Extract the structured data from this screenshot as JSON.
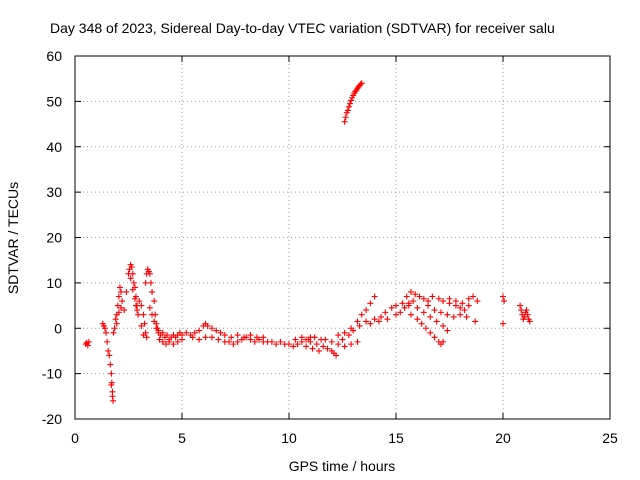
{
  "chart_data": {
    "type": "scatter",
    "title": "Day 348 of 2023, Sidereal Day-to-day VTEC variation (SDTVAR) for receiver salu",
    "xlabel": "GPS time / hours",
    "ylabel": "SDTVAR / TECUs",
    "xlim": [
      0,
      25
    ],
    "ylim": [
      -20,
      60
    ],
    "xticks": [
      "0",
      "5",
      "10",
      "15",
      "20",
      "25"
    ],
    "yticks": [
      "-20",
      "-10",
      "0",
      "10",
      "20",
      "30",
      "40",
      "50",
      "60"
    ],
    "grid": true,
    "marker": "+",
    "color": "#ff0000",
    "series": [
      {
        "name": "SDTVAR",
        "points": [
          [
            0.5,
            -3.5
          ],
          [
            0.55,
            -3.2
          ],
          [
            0.6,
            -3.8
          ],
          [
            0.65,
            -3.0
          ],
          [
            1.3,
            1.0
          ],
          [
            1.35,
            0.5
          ],
          [
            1.4,
            0.0
          ],
          [
            1.45,
            -1.0
          ],
          [
            1.5,
            -3.0
          ],
          [
            1.55,
            -5.0
          ],
          [
            1.6,
            -6.0
          ],
          [
            1.65,
            -8.0
          ],
          [
            1.7,
            -10.0
          ],
          [
            1.72,
            -12.0
          ],
          [
            1.75,
            -14.0
          ],
          [
            1.78,
            -16.0
          ],
          [
            1.7,
            -12.5
          ],
          [
            1.75,
            -15.0
          ],
          [
            1.8,
            -1.0
          ],
          [
            1.85,
            0.0
          ],
          [
            1.9,
            2.0
          ],
          [
            1.95,
            3.0
          ],
          [
            2.0,
            5.0
          ],
          [
            2.05,
            7.0
          ],
          [
            2.1,
            9.0
          ],
          [
            2.15,
            8.0
          ],
          [
            2.2,
            6.0
          ],
          [
            2.05,
            3.5
          ],
          [
            2.15,
            4.5
          ],
          [
            1.95,
            1.0
          ],
          [
            2.3,
            4.0
          ],
          [
            2.4,
            8.0
          ],
          [
            2.5,
            12.0
          ],
          [
            2.55,
            13.0
          ],
          [
            2.6,
            14.0
          ],
          [
            2.65,
            13.5
          ],
          [
            2.7,
            12.0
          ],
          [
            2.75,
            10.0
          ],
          [
            2.8,
            9.0
          ],
          [
            2.85,
            7.0
          ],
          [
            2.9,
            5.0
          ],
          [
            2.95,
            3.0
          ],
          [
            2.6,
            11.0
          ],
          [
            2.7,
            8.5
          ],
          [
            2.8,
            6.5
          ],
          [
            2.85,
            5.0
          ],
          [
            2.9,
            4.0
          ],
          [
            3.0,
            6.0
          ],
          [
            3.1,
            5.0
          ],
          [
            3.2,
            3.0
          ],
          [
            3.25,
            1.0
          ],
          [
            3.3,
            -1.0
          ],
          [
            3.35,
            -2.0
          ],
          [
            3.1,
            0.5
          ],
          [
            3.2,
            -1.5
          ],
          [
            3.3,
            10.0
          ],
          [
            3.35,
            12.0
          ],
          [
            3.4,
            13.0
          ],
          [
            3.45,
            12.5
          ],
          [
            3.5,
            12.0
          ],
          [
            3.55,
            10.0
          ],
          [
            3.6,
            8.0
          ],
          [
            3.7,
            6.0
          ],
          [
            3.75,
            3.0
          ],
          [
            3.8,
            1.0
          ],
          [
            3.85,
            0.0
          ],
          [
            3.5,
            4.5
          ],
          [
            3.6,
            3.0
          ],
          [
            3.7,
            1.5
          ],
          [
            3.8,
            0.0
          ],
          [
            3.9,
            -1.0
          ],
          [
            3.9,
            -0.5
          ],
          [
            4.0,
            -1.5
          ],
          [
            4.1,
            -1.0
          ],
          [
            4.2,
            -2.0
          ],
          [
            4.3,
            -1.5
          ],
          [
            4.4,
            -2.5
          ],
          [
            4.5,
            -2.0
          ],
          [
            4.6,
            -1.5
          ],
          [
            4.7,
            -2.0
          ],
          [
            4.8,
            -1.5
          ],
          [
            4.9,
            -1.0
          ],
          [
            5.0,
            -1.5
          ],
          [
            3.95,
            -2.5
          ],
          [
            4.1,
            -3.0
          ],
          [
            4.25,
            -3.5
          ],
          [
            4.4,
            -3.0
          ],
          [
            4.6,
            -3.5
          ],
          [
            4.8,
            -3.0
          ],
          [
            5.0,
            -2.5
          ],
          [
            5.2,
            -1.0
          ],
          [
            5.4,
            -1.5
          ],
          [
            5.6,
            -1.0
          ],
          [
            5.8,
            -0.5
          ],
          [
            6.0,
            0.5
          ],
          [
            6.1,
            1.0
          ],
          [
            6.2,
            0.5
          ],
          [
            6.4,
            0.0
          ],
          [
            6.6,
            -0.5
          ],
          [
            6.8,
            -1.0
          ],
          [
            7.0,
            -1.5
          ],
          [
            5.5,
            -2.0
          ],
          [
            5.8,
            -2.5
          ],
          [
            6.1,
            -2.0
          ],
          [
            6.4,
            -2.0
          ],
          [
            6.7,
            -2.5
          ],
          [
            7.0,
            -3.0
          ],
          [
            7.2,
            -3.0
          ],
          [
            7.4,
            -3.5
          ],
          [
            7.6,
            -3.0
          ],
          [
            7.8,
            -2.5
          ],
          [
            8.0,
            -2.0
          ],
          [
            8.2,
            -2.5
          ],
          [
            8.4,
            -3.0
          ],
          [
            8.6,
            -2.5
          ],
          [
            8.8,
            -3.0
          ],
          [
            9.0,
            -3.0
          ],
          [
            7.3,
            -2.0
          ],
          [
            7.6,
            -1.5
          ],
          [
            7.9,
            -2.0
          ],
          [
            8.2,
            -1.5
          ],
          [
            8.5,
            -2.0
          ],
          [
            8.8,
            -2.0
          ],
          [
            9.2,
            -3.0
          ],
          [
            9.4,
            -3.5
          ],
          [
            9.6,
            -3.0
          ],
          [
            9.8,
            -3.5
          ],
          [
            10.0,
            -3.5
          ],
          [
            10.2,
            -4.0
          ],
          [
            10.4,
            -3.5
          ],
          [
            10.6,
            -3.0
          ],
          [
            10.8,
            -2.5
          ],
          [
            11.0,
            -2.0
          ],
          [
            10.3,
            -2.5
          ],
          [
            10.6,
            -2.0
          ],
          [
            10.9,
            -2.5
          ],
          [
            11.2,
            -2.0
          ],
          [
            11.5,
            -2.5
          ],
          [
            11.0,
            -3.0
          ],
          [
            11.3,
            -3.5
          ],
          [
            11.6,
            -4.0
          ],
          [
            11.8,
            -4.5
          ],
          [
            12.0,
            -5.0
          ],
          [
            12.1,
            -5.5
          ],
          [
            12.2,
            -6.0
          ],
          [
            10.8,
            -4.0
          ],
          [
            11.1,
            -4.5
          ],
          [
            11.4,
            -5.0
          ],
          [
            11.7,
            -2.5
          ],
          [
            12.0,
            -3.0
          ],
          [
            12.3,
            -3.5
          ],
          [
            12.6,
            -4.0
          ],
          [
            12.9,
            -3.5
          ],
          [
            13.2,
            -3.0
          ],
          [
            12.3,
            -1.5
          ],
          [
            12.6,
            -1.0
          ],
          [
            12.9,
            0.0
          ],
          [
            13.2,
            1.5
          ],
          [
            13.4,
            3.0
          ],
          [
            13.6,
            4.0
          ],
          [
            13.8,
            5.5
          ],
          [
            14.0,
            7.0
          ],
          [
            12.5,
            -2.5
          ],
          [
            12.8,
            -1.5
          ],
          [
            13.0,
            -0.5
          ],
          [
            13.3,
            0.5
          ],
          [
            13.6,
            1.5
          ],
          [
            14.0,
            2.0
          ],
          [
            14.3,
            2.5
          ],
          [
            13.8,
            1.0
          ],
          [
            14.2,
            1.5
          ],
          [
            14.6,
            2.0
          ],
          [
            15.0,
            3.0
          ],
          [
            15.2,
            3.5
          ],
          [
            15.4,
            4.5
          ],
          [
            15.6,
            5.5
          ],
          [
            15.8,
            6.0
          ],
          [
            14.5,
            3.5
          ],
          [
            14.8,
            4.5
          ],
          [
            15.0,
            5.0
          ],
          [
            15.3,
            5.5
          ],
          [
            15.6,
            5.0
          ],
          [
            15.5,
            7.0
          ],
          [
            15.7,
            8.0
          ],
          [
            15.9,
            7.5
          ],
          [
            16.1,
            7.0
          ],
          [
            16.3,
            6.5
          ],
          [
            16.5,
            6.0
          ],
          [
            16.7,
            7.0
          ],
          [
            17.0,
            6.5
          ],
          [
            15.7,
            3.0
          ],
          [
            16.0,
            2.0
          ],
          [
            16.2,
            1.0
          ],
          [
            16.4,
            0.0
          ],
          [
            16.6,
            -1.0
          ],
          [
            16.8,
            -2.0
          ],
          [
            17.0,
            -3.0
          ],
          [
            17.1,
            -3.5
          ],
          [
            17.2,
            -3.0
          ],
          [
            16.0,
            4.5
          ],
          [
            16.3,
            3.5
          ],
          [
            16.6,
            2.5
          ],
          [
            16.9,
            1.5
          ],
          [
            17.2,
            0.5
          ],
          [
            17.4,
            -0.5
          ],
          [
            16.5,
            5.0
          ],
          [
            16.8,
            4.0
          ],
          [
            17.1,
            3.5
          ],
          [
            17.4,
            3.0
          ],
          [
            17.7,
            2.5
          ],
          [
            18.0,
            3.0
          ],
          [
            18.2,
            4.0
          ],
          [
            18.4,
            5.0
          ],
          [
            17.2,
            6.0
          ],
          [
            17.5,
            5.5
          ],
          [
            17.8,
            5.0
          ],
          [
            18.1,
            5.5
          ],
          [
            18.4,
            6.5
          ],
          [
            18.6,
            7.0
          ],
          [
            18.8,
            6.0
          ],
          [
            18.7,
            1.5
          ],
          [
            17.5,
            6.5
          ],
          [
            17.8,
            6.0
          ],
          [
            18.0,
            4.5
          ],
          [
            18.3,
            2.5
          ],
          [
            20.0,
            7.0
          ],
          [
            20.05,
            6.0
          ],
          [
            20.0,
            1.0
          ],
          [
            20.8,
            5.0
          ],
          [
            20.85,
            4.0
          ],
          [
            20.9,
            3.0
          ],
          [
            20.95,
            2.0
          ],
          [
            21.0,
            2.5
          ],
          [
            21.05,
            3.5
          ],
          [
            21.1,
            4.0
          ],
          [
            21.15,
            3.0
          ],
          [
            21.2,
            2.0
          ],
          [
            21.25,
            1.5
          ],
          [
            12.6,
            45.5
          ],
          [
            12.65,
            46.5
          ],
          [
            12.7,
            47.5
          ],
          [
            12.75,
            48.0
          ],
          [
            12.8,
            48.8
          ],
          [
            12.85,
            49.5
          ],
          [
            12.9,
            50.2
          ],
          [
            12.95,
            50.8
          ],
          [
            13.0,
            51.3
          ],
          [
            13.05,
            51.8
          ],
          [
            13.1,
            52.2
          ],
          [
            13.15,
            52.5
          ],
          [
            13.2,
            52.9
          ],
          [
            13.25,
            53.2
          ],
          [
            13.3,
            53.5
          ],
          [
            13.35,
            53.8
          ],
          [
            13.4,
            54.0
          ]
        ]
      }
    ]
  }
}
